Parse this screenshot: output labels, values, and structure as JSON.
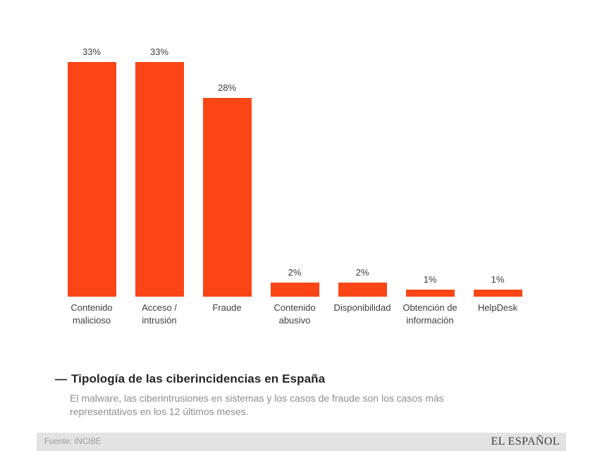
{
  "chart_data": {
    "type": "bar",
    "categories": [
      "Contenido malicioso",
      "Acceso / intrusión",
      "Fraude",
      "Contenido abusivo",
      "Disponibilidad",
      "Obtención de información",
      "HelpDesk"
    ],
    "values": [
      33,
      33,
      28,
      2,
      2,
      1,
      1
    ],
    "value_labels": [
      "33%",
      "33%",
      "28%",
      "2%",
      "2%",
      "1%",
      "1%"
    ],
    "title": "Tipología de las ciberincidencias en España",
    "xlabel": "",
    "ylabel": "",
    "ylim": [
      0,
      33
    ],
    "grid": false,
    "legend": false,
    "bar_color": "#fa4616"
  },
  "caption": {
    "dash": "—",
    "title": "Tipología de las ciberincidencias en España",
    "subtitle": "El malware, las ciberintrusiones en sistemas y los casos de fraude son los casos más representativos en los 12 últimos meses."
  },
  "footer": {
    "source": "Fuente: INCIBE",
    "brand": "EL ESPAÑOL"
  }
}
